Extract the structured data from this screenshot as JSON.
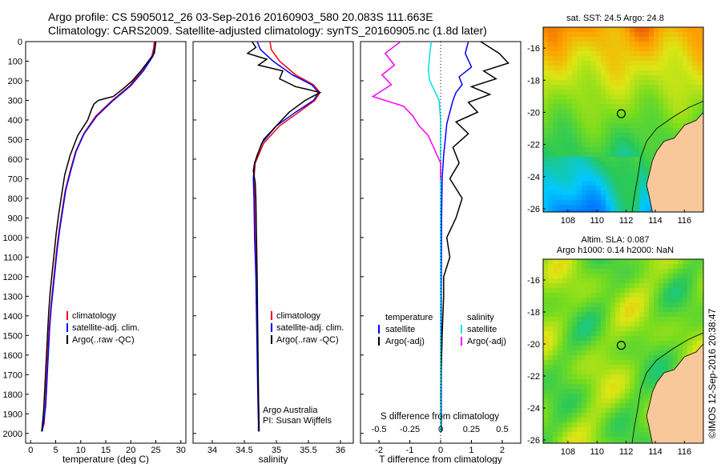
{
  "header": {
    "line1": "Argo profile: CS 5905012_26 03-Sep-2016 20160903_580 20.083S 111.663E",
    "line2": "Climatology: CARS2009. Satellite-adjusted climatology: synTS_20160905.nc (1.8d later)"
  },
  "colors": {
    "climatology": "#ff0000",
    "satellite": "#0000ff",
    "argo": "#000000",
    "argo_salinity_diff": "#ff00ff",
    "satellite_salinity_diff": "#00e0e0",
    "land": "#f8c89a"
  },
  "chart_data": [
    {
      "id": "temperature",
      "type": "line",
      "xlabel": "temperature (deg C)",
      "ylabel": "",
      "xlim": [
        -1,
        31
      ],
      "ylim": [
        2050,
        0
      ],
      "xticks": [
        0,
        5,
        10,
        15,
        20,
        25,
        30
      ],
      "yticks": [
        0,
        100,
        200,
        300,
        400,
        500,
        600,
        700,
        800,
        900,
        1000,
        1100,
        1200,
        1300,
        1400,
        1500,
        1600,
        1700,
        1800,
        1900,
        2000
      ],
      "legend": [
        "climatology",
        "satellite-adj. clim.",
        "Argo(..raw -QC)"
      ],
      "series": [
        {
          "name": "climatology",
          "color": "#ff0000",
          "x": [
            24.7,
            24.6,
            24.2,
            22.2,
            19.8,
            16.3,
            13.0,
            10.6,
            9.0,
            7.9,
            6.9,
            6.3,
            5.7,
            5.2,
            4.8,
            4.4,
            4.0,
            3.7,
            3.5,
            3.3,
            3.1,
            2.9,
            2.7,
            2.55,
            2.4,
            2.3,
            2.2
          ],
          "y": [
            0,
            30,
            75,
            150,
            225,
            300,
            380,
            470,
            560,
            660,
            760,
            860,
            960,
            1060,
            1160,
            1260,
            1360,
            1460,
            1560,
            1660,
            1760,
            1860,
            1950,
            1960,
            1970,
            1980,
            1990
          ]
        },
        {
          "name": "satellite-adj. clim.",
          "color": "#0000ff",
          "x": [
            24.9,
            24.8,
            24.4,
            22.5,
            20.0,
            16.5,
            13.2,
            10.7,
            9.1,
            8.0,
            7.0,
            6.4,
            5.8,
            5.3,
            4.9,
            4.5,
            4.1,
            3.8,
            3.6,
            3.4,
            3.2,
            3.0,
            2.8,
            2.6,
            2.45,
            2.3
          ],
          "y": [
            0,
            30,
            75,
            150,
            225,
            300,
            380,
            470,
            560,
            660,
            760,
            860,
            960,
            1060,
            1160,
            1260,
            1360,
            1460,
            1560,
            1660,
            1760,
            1860,
            1900,
            1940,
            1970,
            1990
          ]
        },
        {
          "name": "Argo(..raw -QC)",
          "color": "#000000",
          "x": [
            25.0,
            24.9,
            24.7,
            22.0,
            20.3,
            18.5,
            16.5,
            15.0,
            13.5,
            12.6,
            12.1,
            11.4,
            9.4,
            7.9,
            6.8,
            6.2,
            5.6,
            5.1,
            4.7,
            4.3,
            3.9,
            3.6,
            3.4,
            3.2,
            3.0,
            2.8,
            2.6,
            2.4,
            2.3,
            2.2
          ],
          "y": [
            0,
            20,
            60,
            150,
            200,
            240,
            280,
            290,
            300,
            320,
            350,
            400,
            480,
            580,
            680,
            780,
            880,
            980,
            1080,
            1180,
            1280,
            1380,
            1480,
            1580,
            1680,
            1780,
            1880,
            1940,
            1970,
            1990
          ]
        }
      ]
    },
    {
      "id": "salinity",
      "type": "line",
      "xlabel": "salinity",
      "ylabel": "",
      "xlim": [
        33.7,
        36.2
      ],
      "ylim": [
        2050,
        0
      ],
      "xticks": [
        34,
        34.5,
        35,
        35.5,
        36
      ],
      "xticklabels": [
        "34",
        "34.5",
        "35",
        "35.5",
        "36"
      ],
      "legend": [
        "climatology",
        "satellite-adj. clim.",
        "Argo(..raw -QC)"
      ],
      "annotation": [
        "Argo Australia",
        "PI: Susan Wijffels"
      ],
      "series": [
        {
          "name": "climatology",
          "color": "#ff0000",
          "x": [
            34.9,
            34.92,
            35.05,
            35.3,
            35.58,
            35.68,
            35.6,
            35.35,
            35.05,
            34.8,
            34.67,
            34.65,
            34.66,
            34.67,
            34.69,
            34.7,
            34.71,
            34.72,
            34.73,
            34.73
          ],
          "y": [
            0,
            40,
            100,
            170,
            220,
            260,
            300,
            360,
            430,
            520,
            620,
            700,
            800,
            1000,
            1200,
            1400,
            1600,
            1800,
            1950,
            1990
          ]
        },
        {
          "name": "satellite-adj. clim.",
          "color": "#0000ff",
          "x": [
            34.7,
            34.75,
            34.95,
            35.25,
            35.55,
            35.66,
            35.58,
            35.3,
            35.0,
            34.77,
            34.66,
            34.64,
            34.65,
            34.66,
            34.68,
            34.69,
            34.7,
            34.71,
            34.72,
            34.72
          ],
          "y": [
            0,
            40,
            100,
            170,
            220,
            260,
            300,
            360,
            430,
            520,
            620,
            700,
            800,
            1000,
            1200,
            1400,
            1600,
            1800,
            1950,
            1990
          ]
        },
        {
          "name": "Argo(..raw -QC)",
          "color": "#000000",
          "x": [
            34.62,
            34.68,
            34.55,
            34.85,
            34.72,
            35.1,
            35.05,
            35.3,
            35.5,
            35.68,
            35.45,
            35.2,
            35.0,
            34.8,
            34.7,
            34.66,
            34.64,
            34.67,
            34.68,
            34.69,
            34.7,
            34.71,
            34.72,
            34.73
          ],
          "y": [
            0,
            30,
            60,
            90,
            120,
            150,
            190,
            230,
            245,
            260,
            300,
            360,
            430,
            500,
            580,
            620,
            660,
            720,
            800,
            1000,
            1200,
            1500,
            1800,
            1990
          ]
        }
      ]
    },
    {
      "id": "difference",
      "type": "line",
      "xlabel": "T difference from climatology",
      "xlabel_top": "S difference from climatology",
      "xlim": [
        -2.6,
        2.6
      ],
      "ylim": [
        2050,
        0
      ],
      "xticks": [
        -2,
        -1,
        0,
        1,
        2
      ],
      "xticks_top": [
        -0.5,
        -0.25,
        0,
        0.25,
        0.5
      ],
      "legend_temperature": {
        "title": "temperature",
        "items": [
          "satellite",
          "Argo(-adj)"
        ]
      },
      "legend_salinity": {
        "title": "salinity",
        "items": [
          "satellite",
          "Argo(-adj)"
        ]
      },
      "series": [
        {
          "name": "temperature satellite",
          "color": "#0000ff",
          "x": [
            0.9,
            0.8,
            1.0,
            0.6,
            0.7,
            0.5,
            0.4,
            0.3,
            0.2,
            0.15,
            0.1,
            0.05,
            0.03,
            0.02,
            0.02,
            0.02
          ],
          "y": [
            0,
            60,
            130,
            180,
            220,
            260,
            300,
            360,
            420,
            500,
            580,
            700,
            900,
            1300,
            1700,
            1990
          ]
        },
        {
          "name": "temperature Argo(-adj)",
          "color": "#000000",
          "x": [
            1.3,
            1.9,
            2.2,
            1.4,
            1.8,
            1.0,
            1.6,
            0.9,
            1.2,
            0.5,
            0.9,
            0.4,
            0.6,
            0.3,
            0.7,
            0.5,
            0.2,
            0.3,
            0.1,
            0.1,
            0.05,
            0.0,
            0.02
          ],
          "y": [
            0,
            60,
            110,
            150,
            190,
            230,
            270,
            310,
            360,
            410,
            470,
            540,
            620,
            700,
            800,
            900,
            1000,
            1100,
            1200,
            1300,
            1500,
            1800,
            1990
          ]
        },
        {
          "name": "salinity satellite",
          "color": "#00e0e0",
          "x": [
            -0.3,
            -0.35,
            -0.4,
            -0.35,
            -0.2,
            -0.05,
            0.0,
            0.0,
            0.0,
            0.0
          ],
          "y": [
            0,
            60,
            150,
            200,
            250,
            300,
            400,
            600,
            1000,
            1990
          ]
        },
        {
          "name": "salinity Argo(-adj)",
          "color": "#ff00ff",
          "x": [
            -1.3,
            -1.8,
            -1.5,
            -1.9,
            -1.6,
            -2.2,
            -1.2,
            -0.9,
            -0.7,
            -0.4,
            -0.2,
            0.0,
            0.0
          ],
          "y": [
            0,
            60,
            120,
            170,
            220,
            280,
            330,
            380,
            430,
            480,
            550,
            620,
            700
          ]
        }
      ]
    },
    {
      "id": "sst-map",
      "type": "heatmap",
      "title": "sat. SST: 24.5  Argo: 24.8",
      "xticks": [
        108,
        110,
        112,
        114,
        116
      ],
      "yticks": [
        -16,
        -18,
        -20,
        -22,
        -24,
        -26
      ],
      "xlim": [
        106.3,
        117.3
      ],
      "ylim": [
        -26.2,
        -14.7
      ],
      "marker": {
        "lon": 111.663,
        "lat": -20.083
      }
    },
    {
      "id": "sla-map",
      "type": "heatmap",
      "title": "Altim. SLA: 0.087",
      "subtitle": "Argo h1000: 0.14 h2000: NaN",
      "xticks": [
        108,
        110,
        112,
        114,
        116
      ],
      "yticks": [
        -16,
        -18,
        -20,
        -22,
        -24,
        -26
      ],
      "xlim": [
        106.3,
        117.3
      ],
      "ylim": [
        -26.2,
        -14.7
      ],
      "marker": {
        "lon": 111.663,
        "lat": -20.083
      }
    }
  ],
  "footer": {
    "credit": "©IMOS 12-Sep-2016 20:38:47"
  }
}
